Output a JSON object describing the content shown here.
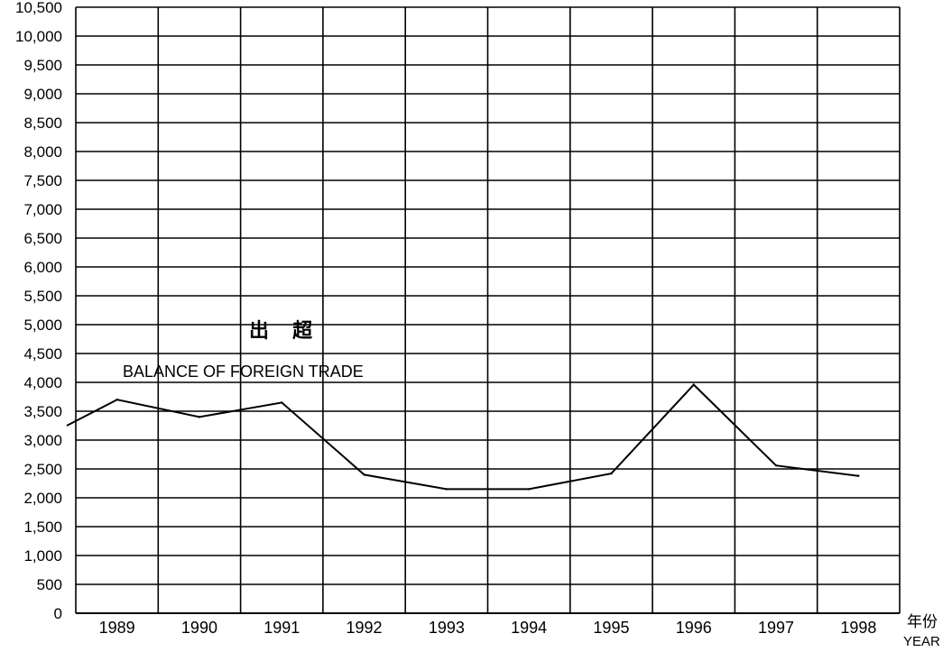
{
  "chart_data": {
    "type": "line",
    "title_cn": "出 超",
    "title_en": "BALANCE OF FOREIGN TRADE",
    "x_label_cn": "年份",
    "x_label_en": "YEAR",
    "y_label": "",
    "ylim": [
      0,
      10500
    ],
    "y_step": 500,
    "grid": true,
    "categories": [
      "1989",
      "1990",
      "1991",
      "1992",
      "1993",
      "1994",
      "1995",
      "1996",
      "1997",
      "1998"
    ],
    "y_ticks": [
      "0",
      "500",
      "1,000",
      "1,500",
      "2,000",
      "2,500",
      "3,000",
      "3,500",
      "4,000",
      "4,500",
      "5,000",
      "5,500",
      "6,000",
      "6,500",
      "7,000",
      "7,500",
      "8,000",
      "8,500",
      "9,000",
      "9,500",
      "10,000",
      "10,500"
    ],
    "series": [
      {
        "lead_in_value": 3250,
        "values": [
          3700,
          3400,
          3650,
          2400,
          2150,
          2150,
          2420,
          3960,
          2560,
          2380
        ]
      }
    ]
  }
}
